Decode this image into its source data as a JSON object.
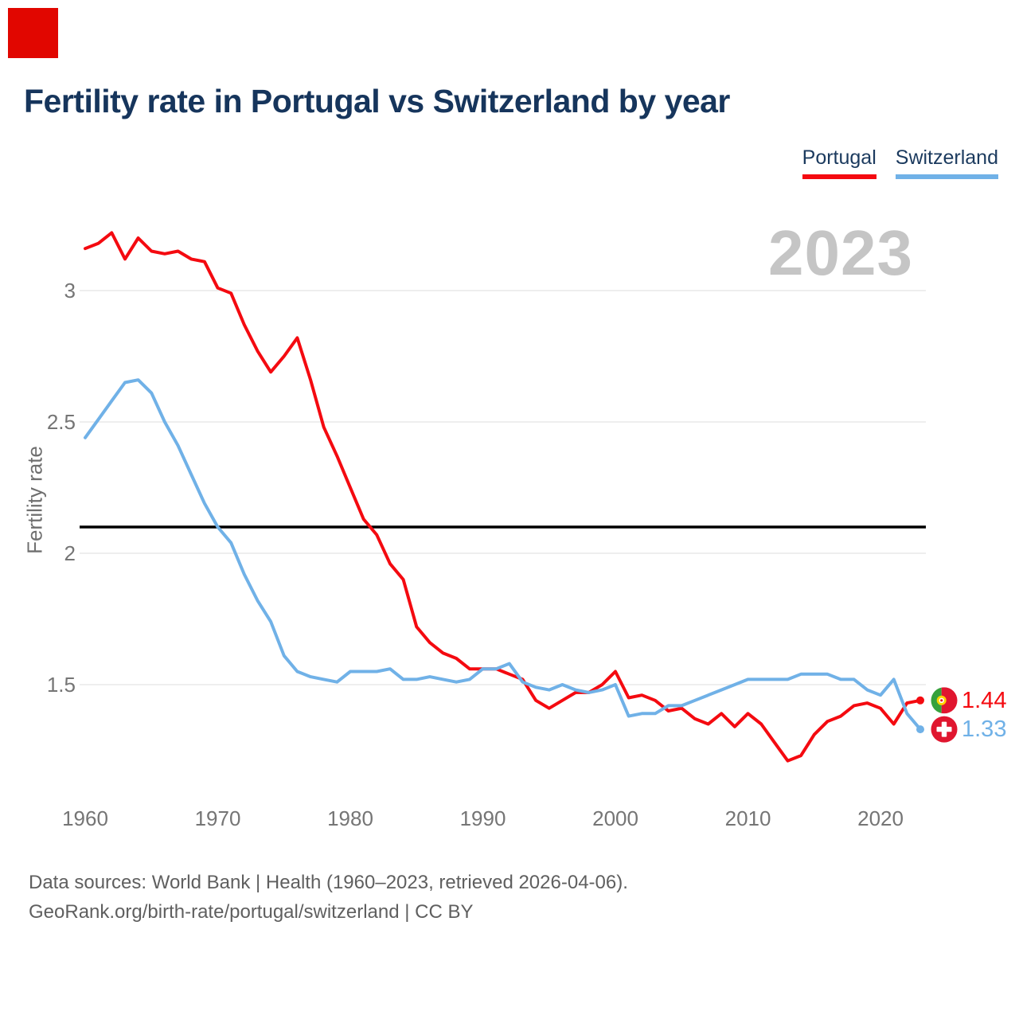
{
  "brand": {
    "color": "#e10600"
  },
  "header": {
    "title": "Fertility rate in Portugal vs Switzerland by year"
  },
  "legend": [
    {
      "label": "Portugal",
      "color": "#f40a10"
    },
    {
      "label": "Switzerland",
      "color": "#70b1e7"
    }
  ],
  "watermark": "2023",
  "chart_data": {
    "type": "line",
    "title": "Fertility rate in Portugal vs Switzerland by year",
    "xlabel": "",
    "ylabel": "Fertility rate",
    "xlim": [
      1960,
      2023
    ],
    "ylim": [
      1.15,
      3.3
    ],
    "grid": true,
    "legend_position": "top-right",
    "x_ticks": [
      1960,
      1970,
      1980,
      1990,
      2000,
      2010,
      2020
    ],
    "y_ticks": [
      3,
      2.5,
      2,
      1.5
    ],
    "reference_line": {
      "value": 2.1,
      "color": "#000000"
    },
    "x": [
      1960,
      1961,
      1962,
      1963,
      1964,
      1965,
      1966,
      1967,
      1968,
      1969,
      1970,
      1971,
      1972,
      1973,
      1974,
      1975,
      1976,
      1977,
      1978,
      1979,
      1980,
      1981,
      1982,
      1983,
      1984,
      1985,
      1986,
      1987,
      1988,
      1989,
      1990,
      1991,
      1992,
      1993,
      1994,
      1995,
      1996,
      1997,
      1998,
      1999,
      2000,
      2001,
      2002,
      2003,
      2004,
      2005,
      2006,
      2007,
      2008,
      2009,
      2010,
      2011,
      2012,
      2013,
      2014,
      2015,
      2016,
      2017,
      2018,
      2019,
      2020,
      2021,
      2022,
      2023
    ],
    "series": [
      {
        "name": "Portugal",
        "color": "#f40a10",
        "end_label": "1.44",
        "flag": "portugal",
        "values": [
          3.16,
          3.18,
          3.22,
          3.12,
          3.2,
          3.15,
          3.14,
          3.15,
          3.12,
          3.11,
          3.01,
          2.99,
          2.87,
          2.77,
          2.69,
          2.75,
          2.82,
          2.66,
          2.48,
          2.37,
          2.25,
          2.13,
          2.07,
          1.96,
          1.9,
          1.72,
          1.66,
          1.62,
          1.6,
          1.56,
          1.56,
          1.56,
          1.54,
          1.52,
          1.44,
          1.41,
          1.44,
          1.47,
          1.47,
          1.5,
          1.55,
          1.45,
          1.46,
          1.44,
          1.4,
          1.41,
          1.37,
          1.35,
          1.39,
          1.34,
          1.39,
          1.35,
          1.28,
          1.21,
          1.23,
          1.31,
          1.36,
          1.38,
          1.42,
          1.43,
          1.41,
          1.35,
          1.43,
          1.44
        ]
      },
      {
        "name": "Switzerland",
        "color": "#70b1e7",
        "end_label": "1.33",
        "flag": "switzerland",
        "values": [
          2.44,
          2.51,
          2.58,
          2.65,
          2.66,
          2.61,
          2.5,
          2.41,
          2.3,
          2.19,
          2.1,
          2.04,
          1.92,
          1.82,
          1.74,
          1.61,
          1.55,
          1.53,
          1.52,
          1.51,
          1.55,
          1.55,
          1.55,
          1.56,
          1.52,
          1.52,
          1.53,
          1.52,
          1.51,
          1.52,
          1.56,
          1.56,
          1.58,
          1.51,
          1.49,
          1.48,
          1.5,
          1.48,
          1.47,
          1.48,
          1.5,
          1.38,
          1.39,
          1.39,
          1.42,
          1.42,
          1.44,
          1.46,
          1.48,
          1.5,
          1.52,
          1.52,
          1.52,
          1.52,
          1.54,
          1.54,
          1.54,
          1.52,
          1.52,
          1.48,
          1.46,
          1.52,
          1.39,
          1.33
        ]
      }
    ],
    "flag_colors": {
      "portugal_green": "#36a13c",
      "portugal_red": "#e0162f",
      "portugal_yellow": "#ffd400",
      "switzerland_red": "#e0162f",
      "cross_white": "#ffffff"
    }
  },
  "footer": {
    "line1": "Data sources: World Bank | Health (1960–2023, retrieved 2026-04-06).",
    "line2": "GeoRank.org/birth-rate/portugal/switzerland | CC BY"
  }
}
